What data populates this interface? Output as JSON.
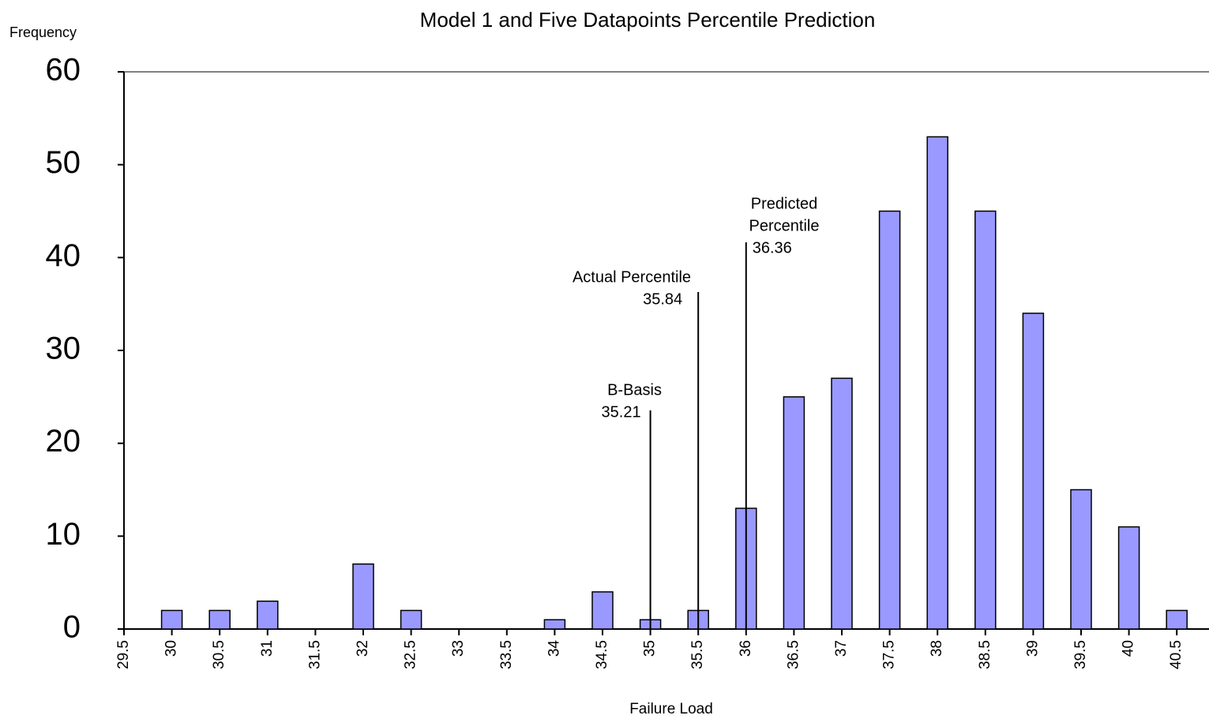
{
  "chart_data": {
    "type": "bar",
    "title": "Model  1 and Five Datapoints Percentile Prediction",
    "y_label": "Frequency",
    "x_label": "Failure Load",
    "categories": [
      "29.5",
      "30",
      "30.5",
      "31",
      "31.5",
      "32",
      "32.5",
      "33",
      "33.5",
      "34",
      "34.5",
      "35",
      "35.5",
      "36",
      "36.5",
      "37",
      "37.5",
      "38",
      "38.5",
      "39",
      "39.5",
      "40",
      "40.5"
    ],
    "values": [
      0,
      2,
      2,
      3,
      0,
      7,
      2,
      0,
      0,
      1,
      4,
      1,
      2,
      13,
      25,
      27,
      45,
      53,
      45,
      34,
      15,
      11,
      2
    ],
    "color": "#9999ff",
    "ylim": [
      0,
      60
    ],
    "yticks": [
      0,
      10,
      20,
      30,
      40,
      50,
      60
    ],
    "grid": false,
    "annotations": [
      {
        "label": [
          "B-Basis"
        ],
        "value": 35.21
      },
      {
        "label": [
          "Actual Percentile"
        ],
        "value": 35.84
      },
      {
        "label": [
          "Predicted",
          "Percentile"
        ],
        "value": 36.36
      }
    ]
  }
}
